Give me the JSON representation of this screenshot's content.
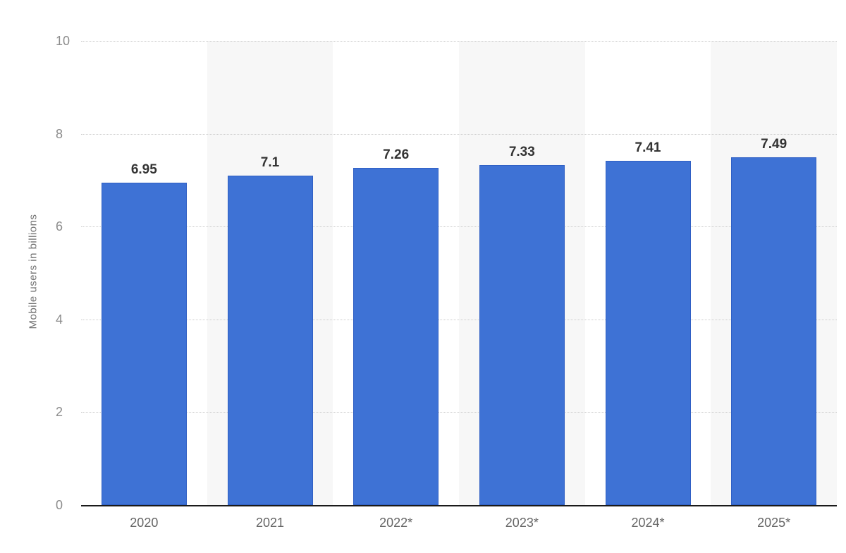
{
  "chart_data": {
    "type": "bar",
    "title": "",
    "ylabel": "Mobile users in billions",
    "xlabel": "",
    "categories": [
      "2020",
      "2021",
      "2022*",
      "2023*",
      "2024*",
      "2025*"
    ],
    "values": [
      6.95,
      7.1,
      7.26,
      7.33,
      7.41,
      7.49
    ],
    "value_labels": [
      "6.95",
      "7.1",
      "7.26",
      "7.33",
      "7.41",
      "7.49"
    ],
    "ylim": [
      0,
      10
    ],
    "yticks": [
      0,
      2,
      4,
      6,
      8,
      10
    ],
    "grid": "horizontal-dotted",
    "legend_position": "none",
    "colors": {
      "bar_fill": "#3E72D5",
      "bar_border": "#2F5FC4",
      "plot_band": "#f7f7f7",
      "axis_line": "#1a1a1a",
      "gridline": "#cbcbcb",
      "y_tick_label": "#8c8c8c",
      "x_tick_label": "#666666",
      "value_label": "#333333",
      "y_title": "#737373",
      "background": "#ffffff"
    }
  }
}
